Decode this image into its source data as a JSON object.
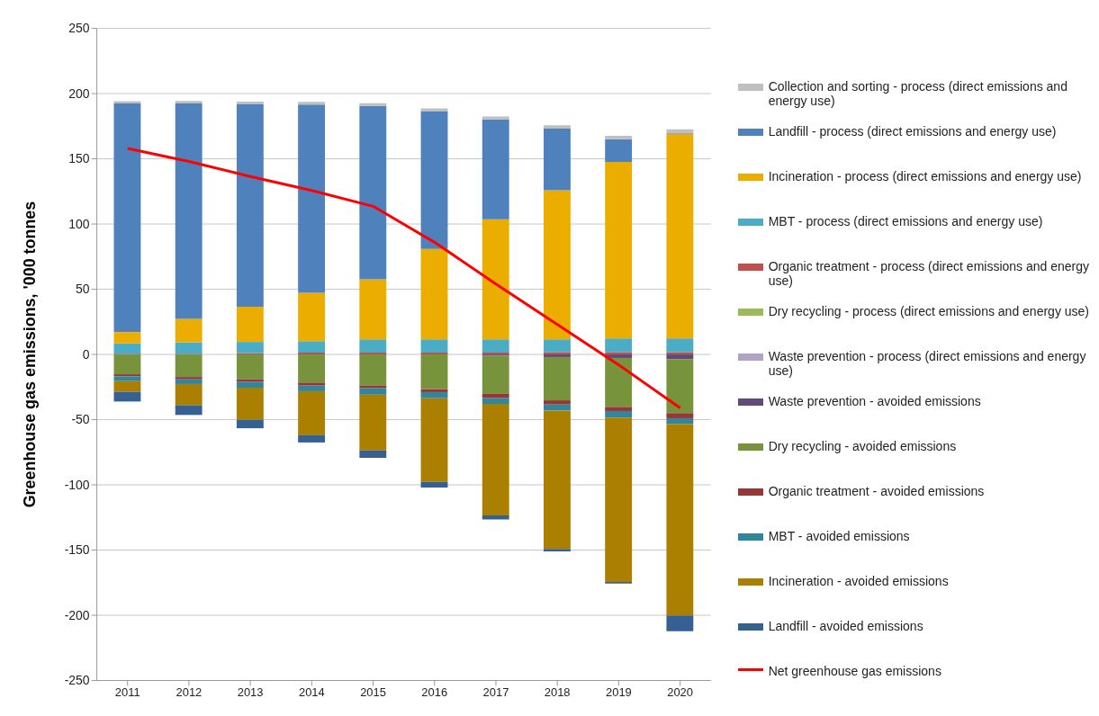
{
  "chart_data": {
    "type": "bar",
    "stacked": true,
    "ylabel": "Greenhouse gas emissions, '000 tonnes",
    "categories": [
      "2011",
      "2012",
      "2013",
      "2014",
      "2015",
      "2016",
      "2017",
      "2018",
      "2019",
      "2020"
    ],
    "ylim": [
      -250,
      250
    ],
    "yticks": [
      -250,
      -200,
      -150,
      -100,
      -50,
      0,
      50,
      100,
      150,
      200,
      250
    ],
    "grid": "y",
    "legend": "right",
    "series": [
      {
        "name": "Waste prevention - process (direct emissions and energy use)",
        "color": "#b3a2c7",
        "values": [
          0,
          0,
          0,
          0,
          0,
          0,
          0,
          0,
          0,
          0
        ]
      },
      {
        "name": "Dry recycling - process (direct emissions and energy use)",
        "color": "#9bbb59",
        "values": [
          0,
          0,
          0,
          0,
          0,
          0,
          0,
          0,
          0,
          0
        ]
      },
      {
        "name": "Organic treatment - process (direct emissions and energy use)",
        "color": "#c0504d",
        "values": [
          0.5,
          0.5,
          1,
          1.4,
          1.4,
          1.4,
          1.4,
          1.8,
          1.8,
          1.8
        ]
      },
      {
        "name": "MBT - process (direct emissions and energy use)",
        "color": "#4bacc6",
        "values": [
          8,
          8.8,
          8.6,
          8.8,
          10.2,
          10.2,
          10.2,
          9.8,
          10.5,
          10.5
        ]
      },
      {
        "name": "Incineration - process (direct emissions and energy use)",
        "color": "#ebae00",
        "values": [
          8.7,
          18,
          27,
          37.1,
          46.1,
          69.3,
          92,
          114.3,
          135.4,
          156.7
        ]
      },
      {
        "name": "Landfill - process (direct emissions and energy use)",
        "color": "#4f81bd",
        "values": [
          175.2,
          165.2,
          155.5,
          144.3,
          132.8,
          105.7,
          76.6,
          47.3,
          17.3,
          0.5
        ]
      },
      {
        "name": "Collection and sorting - process (direct emissions and energy use)",
        "color": "#bfbfbf",
        "values": [
          1.8,
          1.8,
          1.8,
          2,
          2.2,
          2,
          2.3,
          2.5,
          2.7,
          3.2
        ]
      },
      {
        "name": "Waste prevention - avoided emissions",
        "color": "#604a7b",
        "values": [
          0,
          0,
          0,
          0,
          0,
          0,
          -1,
          -2,
          -2.7,
          -3.6
        ]
      },
      {
        "name": "Dry recycling - avoided emissions",
        "color": "#77933c",
        "values": [
          -15.2,
          -17.3,
          -19.1,
          -21.6,
          -23.9,
          -26.6,
          -29.1,
          -33.2,
          -37.5,
          -41.4
        ]
      },
      {
        "name": "Organic treatment - avoided emissions",
        "color": "#953735",
        "values": [
          -1.6,
          -1.8,
          -2,
          -2.3,
          -2,
          -2.3,
          -3.4,
          -3.2,
          -3.2,
          -3.9
        ]
      },
      {
        "name": "MBT - avoided emissions",
        "color": "#31859c",
        "values": [
          -3.7,
          -3.6,
          -4.4,
          -4.3,
          -5,
          -4.7,
          -4.4,
          -4.6,
          -5,
          -4.3
        ]
      },
      {
        "name": "Incineration - avoided emissions",
        "color": "#ab7f00",
        "values": [
          -8.1,
          -16.2,
          -24.5,
          -33.6,
          -42.7,
          -64.1,
          -85.6,
          -106.1,
          -126.1,
          -147
        ]
      },
      {
        "name": "Landfill - avoided emissions",
        "color": "#376092",
        "values": [
          -7.5,
          -7.5,
          -6.6,
          -5.7,
          -5.7,
          -4.3,
          -3,
          -2,
          -1.2,
          -12.1
        ]
      },
      {
        "name": "Net greenhouse gas emissions",
        "type": "line",
        "color": "#ff0000",
        "marker": "none",
        "line_style": "solid",
        "values": [
          158,
          148,
          136.4,
          125.7,
          113.6,
          86,
          54,
          23,
          -8,
          -41
        ]
      }
    ]
  }
}
